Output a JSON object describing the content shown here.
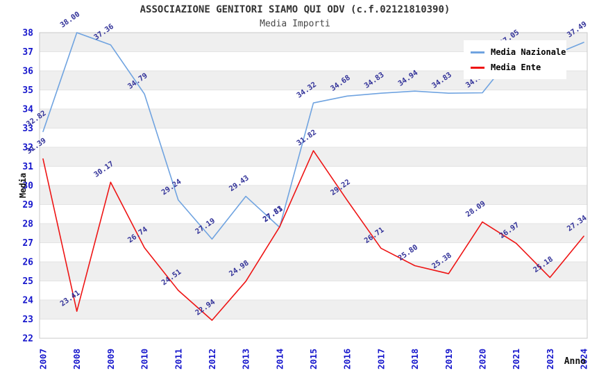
{
  "header": {
    "title": "ASSOCIAZIONE GENITORI SIAMO QUI ODV (c.f.02121810390)",
    "subtitle": "Media Importi"
  },
  "axes": {
    "y_label": "Media",
    "x_label": "Anno"
  },
  "legend": {
    "position": "top-right",
    "items": [
      {
        "label": "Media Nazionale",
        "color": "#6FA3E0"
      },
      {
        "label": "Media Ente",
        "color": "#EE1414"
      }
    ]
  },
  "chart_data": {
    "type": "line",
    "title": "ASSOCIAZIONE GENITORI SIAMO QUI ODV (c.f.02121810390)",
    "subtitle": "Media Importi",
    "xlabel": "Anno",
    "ylabel": "Media",
    "categories": [
      "2007",
      "2008",
      "2009",
      "2010",
      "2011",
      "2012",
      "2013",
      "2014",
      "2015",
      "2016",
      "2017",
      "2018",
      "2019",
      "2020",
      "2021",
      "2023",
      "2024"
    ],
    "ylim": [
      22,
      38
    ],
    "y_ticks": [
      22,
      23,
      24,
      25,
      26,
      27,
      28,
      29,
      30,
      31,
      32,
      33,
      34,
      35,
      36,
      37,
      38
    ],
    "grid": "horizontal-bands-alternating",
    "legend_position": "top-right",
    "series": [
      {
        "name": "Media Nazionale",
        "color": "#6FA3E0",
        "values": [
          32.82,
          38.0,
          37.36,
          34.79,
          29.24,
          27.19,
          29.43,
          27.81,
          34.32,
          34.68,
          34.83,
          34.94,
          34.83,
          34.85,
          37.05,
          36.76,
          37.49
        ],
        "point_labels": [
          "32.82",
          "38.00",
          "37.36",
          "34.79",
          "29.24",
          "27.19",
          "29.43",
          "27.81",
          "34.32",
          "34.68",
          "34.83",
          "34.94",
          "34.83",
          "34.85",
          "37.05",
          null,
          "37.49"
        ]
      },
      {
        "name": "Media Ente",
        "color": "#EE1414",
        "values": [
          31.39,
          23.41,
          30.17,
          26.74,
          24.51,
          22.94,
          24.98,
          27.83,
          31.82,
          29.22,
          26.71,
          25.8,
          25.38,
          28.09,
          26.97,
          25.18,
          27.34
        ],
        "point_labels": [
          "31.39",
          "23.41",
          "30.17",
          "26.74",
          "24.51",
          "22.94",
          "24.98",
          "27.83",
          "31.82",
          "29.22",
          "26.71",
          "25.80",
          "25.38",
          "28.09",
          "26.97",
          "25.18",
          "27.34"
        ]
      }
    ],
    "colors": {
      "band_gray": "#efefef",
      "grid_line": "#e3e3e3",
      "plot_border": "#c9c9c9",
      "tick_label": "#1616cc",
      "point_label": "#333399",
      "background": "#ffffff"
    }
  }
}
